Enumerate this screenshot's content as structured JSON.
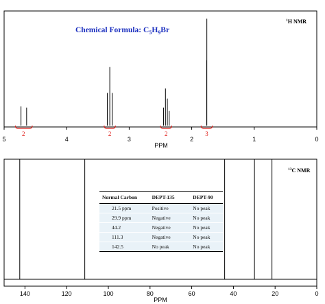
{
  "chart_data": [
    {
      "type": "line",
      "xlabel": "PPM",
      "xlim": [
        5,
        0
      ],
      "x_ticks": [
        "5",
        "4",
        "3",
        "2",
        "1",
        "0"
      ],
      "annotation_formula_prefix": "Chemical Formula: C",
      "annotation_formula_c": "5",
      "annotation_formula_mid": "H",
      "annotation_formula_h": "9",
      "annotation_formula_suffix": "Br",
      "nucleus_label_mass": "1",
      "nucleus_label_text": "H NMR",
      "peaks": [
        {
          "ppm": 4.73,
          "height": 0.17
        },
        {
          "ppm": 4.64,
          "height": 0.16
        },
        {
          "ppm": 3.35,
          "height": 0.29
        },
        {
          "ppm": 3.31,
          "height": 0.52
        },
        {
          "ppm": 3.27,
          "height": 0.29
        },
        {
          "ppm": 2.45,
          "height": 0.16
        },
        {
          "ppm": 2.42,
          "height": 0.33
        },
        {
          "ppm": 2.39,
          "height": 0.24
        },
        {
          "ppm": 2.36,
          "height": 0.13
        },
        {
          "ppm": 1.76,
          "height": 0.58
        },
        {
          "ppm": 1.758,
          "height": 0.95
        }
      ],
      "integrations": [
        {
          "center": 4.69,
          "from": 4.82,
          "to": 4.55,
          "label": "2"
        },
        {
          "center": 3.31,
          "from": 3.4,
          "to": 3.22,
          "label": "2"
        },
        {
          "center": 2.41,
          "from": 2.5,
          "to": 2.32,
          "label": "2"
        },
        {
          "center": 1.76,
          "from": 1.85,
          "to": 1.67,
          "label": "3"
        }
      ]
    },
    {
      "type": "line",
      "xlabel": "PPM",
      "xlim": [
        150,
        0
      ],
      "x_ticks": [
        "140",
        "120",
        "100",
        "80",
        "60",
        "40",
        "20",
        "0"
      ],
      "nucleus_label_mass": "13",
      "nucleus_label_text": "C NMR",
      "peaks": [
        142.5,
        111.3,
        44.2,
        29.9,
        21.5
      ]
    }
  ],
  "dept_table": {
    "headers": [
      "Normal Carbon",
      "DEPT-135",
      "DEPT-90"
    ],
    "rows": [
      [
        "21.5 ppm",
        "Positive",
        "No peak"
      ],
      [
        "29.9 ppm",
        "Negative",
        "No peak"
      ],
      [
        "44.2",
        "Negative",
        "No peak"
      ],
      [
        "111.3",
        "Negative",
        "No peak"
      ],
      [
        "142.5",
        "No peak",
        "No peak"
      ]
    ]
  },
  "colors": {
    "formula": "#1b2fbf",
    "integration": "#e0201b",
    "axis": "#000000"
  }
}
